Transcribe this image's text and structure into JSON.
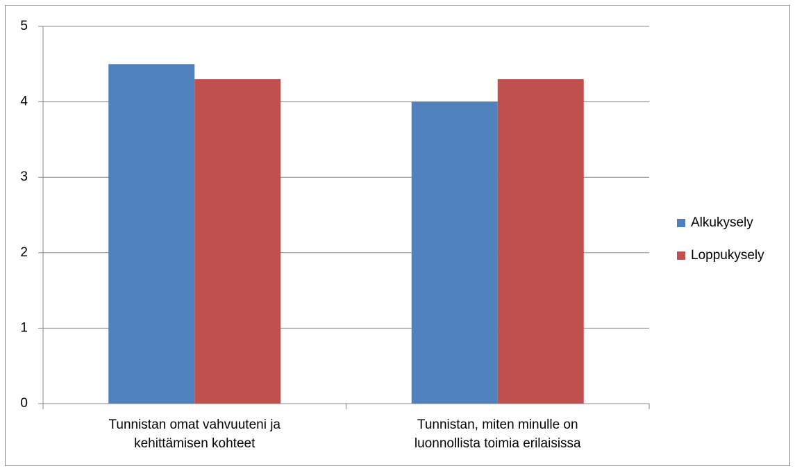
{
  "chart_data": {
    "type": "bar",
    "categories": [
      [
        "Tunnistan omat vahvuuteni ja",
        "kehittämisen kohteet"
      ],
      [
        "Tunnistan, miten minulle on",
        "luonnollista toimia erilaisissa"
      ]
    ],
    "series": [
      {
        "name": "Alkukysely",
        "color": "#4f81bd",
        "values": [
          4.5,
          4.0
        ]
      },
      {
        "name": "Loppukysely",
        "color": "#c0504d",
        "values": [
          4.3,
          4.3
        ]
      }
    ],
    "ylim": [
      0,
      5
    ],
    "yticks": [
      0,
      1,
      2,
      3,
      4,
      5
    ],
    "grid": true,
    "legend": "right"
  }
}
